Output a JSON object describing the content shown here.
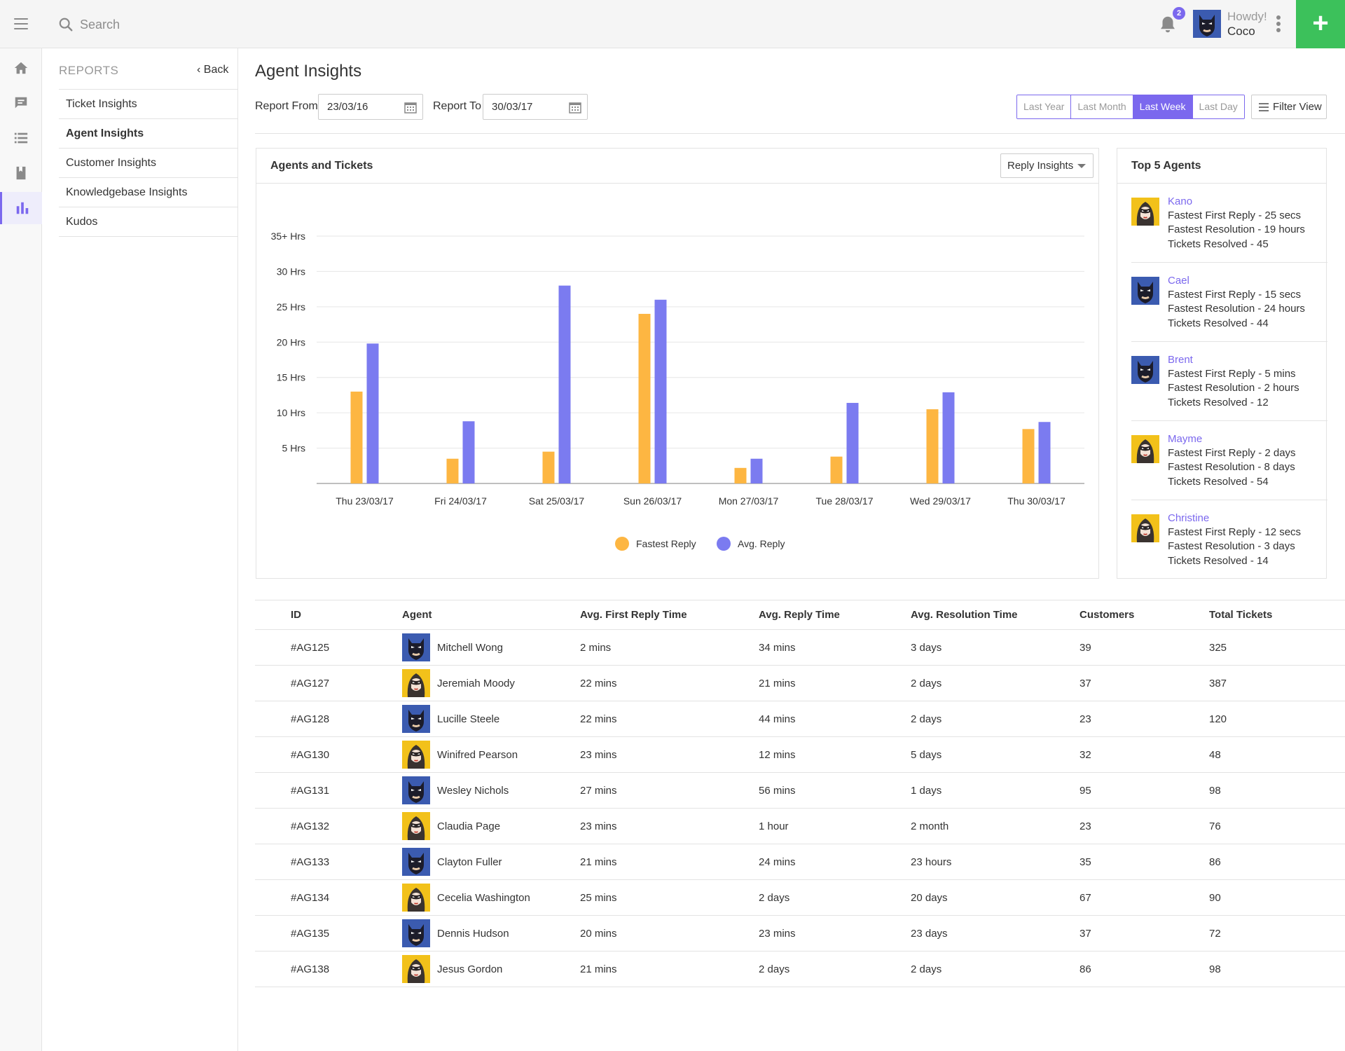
{
  "topbar": {
    "search_placeholder": "Search",
    "notification_count": "2",
    "greeting": "Howdy!",
    "username": "Coco",
    "add_label": "+"
  },
  "rail": [
    "home-icon",
    "chat-icon",
    "list-icon",
    "book-icon",
    "reports-chart-icon"
  ],
  "sidebar": {
    "heading": "REPORTS",
    "back_label": "Back",
    "items": [
      {
        "label": "Ticket Insights"
      },
      {
        "label": "Agent Insights",
        "active": true
      },
      {
        "label": "Customer Insights"
      },
      {
        "label": "Knowledgebase Insights"
      },
      {
        "label": "Kudos"
      }
    ]
  },
  "page": {
    "title": "Agent Insights",
    "report_from_label": "Report From",
    "report_from_value": "23/03/16",
    "report_to_label": "Report To",
    "report_to_value": "30/03/17",
    "ranges": [
      "Last Year",
      "Last Month",
      "Last Week",
      "Last Day"
    ],
    "active_range": "Last Week",
    "filter_label": "Filter View"
  },
  "chart_card": {
    "title": "Agents and Tickets",
    "dropdown_value": "Reply Insights"
  },
  "chart_data": {
    "type": "bar",
    "categories": [
      "Thu 23/03/17",
      "Fri 24/03/17",
      "Sat 25/03/17",
      "Sun 26/03/17",
      "Mon 27/03/17",
      "Tue 28/03/17",
      "Wed 29/03/17",
      "Thu 30/03/17"
    ],
    "series": [
      {
        "name": "Fastest Reply",
        "color": "#fdb642",
        "values": [
          13,
          3.5,
          4.5,
          24,
          2.2,
          3.8,
          10.5,
          7.7
        ]
      },
      {
        "name": "Avg. Reply",
        "color": "#7b7bf0",
        "values": [
          19.8,
          8.8,
          28,
          26,
          3.5,
          11.4,
          12.9,
          8.7
        ]
      }
    ],
    "ytick_labels": [
      "5 Hrs",
      "10 Hrs",
      "15 Hrs",
      "20 Hrs",
      "25 Hrs",
      "30 Hrs",
      "35+ Hrs"
    ],
    "ytick_values": [
      5,
      10,
      15,
      20,
      25,
      30,
      35
    ],
    "ylim": [
      0,
      35
    ],
    "grid": true,
    "legend_position": "bottom-center"
  },
  "top_agents": {
    "title": "Top 5 Agents",
    "agents": [
      {
        "name": "Kano",
        "avatar": "female-avatar",
        "first_reply": "Fastest First Reply - 25 secs",
        "resolution": "Fastest Resolution - 19 hours",
        "resolved": "Tickets Resolved - 45"
      },
      {
        "name": "Cael",
        "avatar": "male-avatar",
        "first_reply": "Fastest First Reply - 15 secs",
        "resolution": "Fastest Resolution - 24 hours",
        "resolved": "Tickets Resolved - 44"
      },
      {
        "name": "Brent",
        "avatar": "male-avatar",
        "first_reply": "Fastest First Reply - 5 mins",
        "resolution": "Fastest Resolution - 2 hours",
        "resolved": "Tickets Resolved - 12"
      },
      {
        "name": "Mayme",
        "avatar": "female-avatar",
        "first_reply": "Fastest First Reply - 2 days",
        "resolution": "Fastest Resolution - 8 days",
        "resolved": "Tickets Resolved - 54"
      },
      {
        "name": "Christine",
        "avatar": "female-avatar",
        "first_reply": "Fastest First Reply - 12 secs",
        "resolution": "Fastest Resolution - 3 days",
        "resolved": "Tickets Resolved - 14"
      }
    ]
  },
  "table": {
    "headers": [
      "ID",
      "Agent",
      "Avg. First Reply Time",
      "Avg. Reply Time",
      "Avg. Resolution Time",
      "Customers",
      "Total Tickets"
    ],
    "rows": [
      {
        "id": "#AG125",
        "agent": "Mitchell Wong",
        "avatar": "male-avatar",
        "first_reply": "2 mins",
        "reply": "34 mins",
        "resolution": "3 days",
        "customers": "39",
        "total": "325"
      },
      {
        "id": "#AG127",
        "agent": "Jeremiah Moody",
        "avatar": "female-avatar",
        "first_reply": "22 mins",
        "reply": "21 mins",
        "resolution": "2 days",
        "customers": "37",
        "total": "387"
      },
      {
        "id": "#AG128",
        "agent": "Lucille Steele",
        "avatar": "male-avatar",
        "first_reply": "22 mins",
        "reply": "44 mins",
        "resolution": "2 days",
        "customers": "23",
        "total": "120"
      },
      {
        "id": "#AG130",
        "agent": "Winifred Pearson",
        "avatar": "female-avatar",
        "first_reply": "23 mins",
        "reply": "12 mins",
        "resolution": "5 days",
        "customers": "32",
        "total": "48"
      },
      {
        "id": "#AG131",
        "agent": "Wesley Nichols",
        "avatar": "male-avatar",
        "first_reply": "27 mins",
        "reply": "56 mins",
        "resolution": "1 days",
        "customers": "95",
        "total": "98"
      },
      {
        "id": "#AG132",
        "agent": "Claudia Page",
        "avatar": "female-avatar",
        "first_reply": "23 mins",
        "reply": "1 hour",
        "resolution": "2 month",
        "customers": "23",
        "total": "76"
      },
      {
        "id": "#AG133",
        "agent": "Clayton Fuller",
        "avatar": "male-avatar",
        "first_reply": "21 mins",
        "reply": "24 mins",
        "resolution": "23 hours",
        "customers": "35",
        "total": "86"
      },
      {
        "id": "#AG134",
        "agent": "Cecelia Washington",
        "avatar": "female-avatar",
        "first_reply": "25 mins",
        "reply": "2 days",
        "resolution": "20 days",
        "customers": "67",
        "total": "90"
      },
      {
        "id": "#AG135",
        "agent": "Dennis Hudson",
        "avatar": "male-avatar",
        "first_reply": "20 mins",
        "reply": "23 mins",
        "resolution": "23 days",
        "customers": "37",
        "total": "72"
      },
      {
        "id": "#AG138",
        "agent": "Jesus Gordon",
        "avatar": "female-avatar",
        "first_reply": "21 mins",
        "reply": "2 days",
        "resolution": "2 days",
        "customers": "86",
        "total": "98"
      }
    ]
  },
  "colors": {
    "accent": "#7b68ee",
    "add_button": "#3cc15b",
    "fastest": "#fdb642",
    "average": "#7b7bf0"
  }
}
